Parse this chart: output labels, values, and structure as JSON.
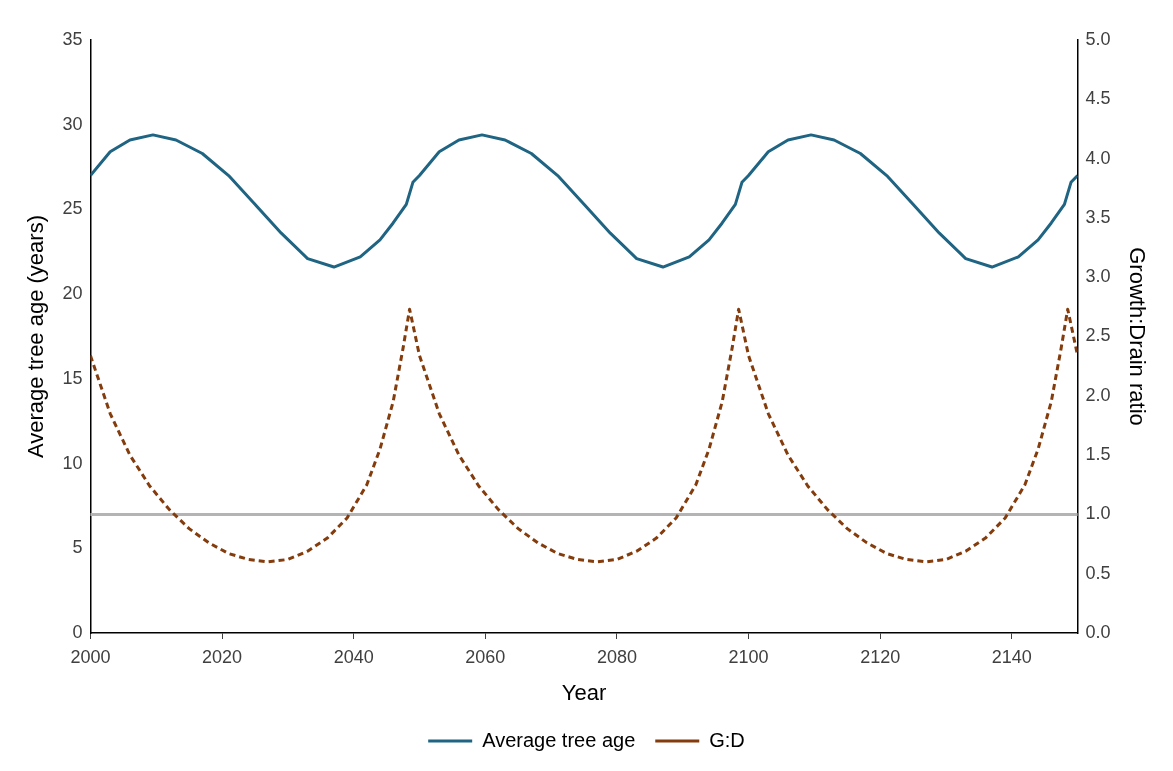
{
  "chart_data": {
    "type": "line",
    "xlabel": "Year",
    "ylabel": "Average tree age (years)",
    "y2label": "Growth:Drain ratio",
    "xlim": [
      2000,
      2150
    ],
    "xticks": [
      2000,
      2020,
      2040,
      2060,
      2080,
      2100,
      2120,
      2140
    ],
    "ylim": [
      0,
      35
    ],
    "yticks": [
      0,
      5,
      10,
      15,
      20,
      25,
      30,
      35
    ],
    "y2lim": [
      0,
      5
    ],
    "y2ticks": [
      {
        "value": 0,
        "label": "0.0"
      },
      {
        "value": 0.5,
        "label": "0.5"
      },
      {
        "value": 1,
        "label": "1.0"
      },
      {
        "value": 1.5,
        "label": "1.5"
      },
      {
        "value": 2,
        "label": "2.0"
      },
      {
        "value": 2.5,
        "label": "2.5"
      },
      {
        "value": 3,
        "label": "3.0"
      },
      {
        "value": 3.5,
        "label": "3.5"
      },
      {
        "value": 4,
        "label": "4.0"
      },
      {
        "value": 4.5,
        "label": "4.5"
      },
      {
        "value": 5,
        "label": "5.0"
      }
    ],
    "grid": false,
    "legend": "bottom",
    "marker": "none",
    "ref_lines": [
      {
        "axis": "y2",
        "value": 1,
        "color": "#b4b4b4",
        "line_style": "solid"
      }
    ],
    "series": [
      {
        "name": "Average tree age",
        "color": "#1f6482",
        "line_style": "solid",
        "x": [
          2000,
          2003,
          2006,
          2009.5,
          2013,
          2017,
          2021,
          2025,
          2029,
          2033,
          2037,
          2041,
          2044,
          2046,
          2048,
          2049,
          2050,
          2053,
          2056,
          2059.5,
          2063,
          2067,
          2071,
          2075,
          2079,
          2083,
          2087,
          2091,
          2094,
          2096,
          2098,
          2099,
          2100,
          2103,
          2106,
          2109.5,
          2113,
          2117,
          2121,
          2125,
          2129,
          2133,
          2137,
          2141,
          2144,
          2146,
          2148,
          2149,
          2150
        ],
        "values": [
          27.0,
          28.4,
          29.1,
          29.4,
          29.1,
          28.3,
          27.0,
          25.3,
          23.6,
          22.1,
          21.6,
          22.2,
          23.2,
          24.2,
          25.3,
          26.6,
          27.0,
          28.4,
          29.1,
          29.4,
          29.1,
          28.3,
          27.0,
          25.3,
          23.6,
          22.1,
          21.6,
          22.2,
          23.2,
          24.2,
          25.3,
          26.6,
          27.0,
          28.4,
          29.1,
          29.4,
          29.1,
          28.3,
          27.0,
          25.3,
          23.6,
          22.1,
          21.6,
          22.2,
          23.2,
          24.2,
          25.3,
          26.6,
          27.0
        ]
      },
      {
        "name": "G:D",
        "color": "#843c0c",
        "line_style": "dashed",
        "axis": "y2",
        "x": [
          2000,
          2003,
          2006,
          2009,
          2012,
          2015,
          2018,
          2021,
          2024,
          2027,
          2030,
          2033,
          2036,
          2039,
          2042,
          2044,
          2046,
          2047.5,
          2048.5,
          2050,
          2053,
          2056,
          2059,
          2062,
          2065,
          2068,
          2071,
          2074,
          2077,
          2080,
          2083,
          2086,
          2089,
          2092,
          2094,
          2096,
          2097.5,
          2098.5,
          2100,
          2103,
          2106,
          2109,
          2112,
          2115,
          2118,
          2121,
          2124,
          2127,
          2130,
          2133,
          2136,
          2139,
          2142,
          2144,
          2146,
          2147.5,
          2148.5,
          2150
        ],
        "values": [
          2.34,
          1.85,
          1.5,
          1.24,
          1.04,
          0.88,
          0.76,
          0.67,
          0.62,
          0.6,
          0.62,
          0.69,
          0.8,
          0.97,
          1.25,
          1.55,
          1.95,
          2.4,
          2.73,
          2.34,
          1.85,
          1.5,
          1.24,
          1.04,
          0.88,
          0.76,
          0.67,
          0.62,
          0.6,
          0.62,
          0.69,
          0.8,
          0.97,
          1.25,
          1.55,
          1.95,
          2.4,
          2.73,
          2.34,
          1.85,
          1.5,
          1.24,
          1.04,
          0.88,
          0.76,
          0.67,
          0.62,
          0.6,
          0.62,
          0.69,
          0.8,
          0.97,
          1.25,
          1.55,
          1.95,
          2.4,
          2.73,
          2.34
        ]
      }
    ]
  }
}
